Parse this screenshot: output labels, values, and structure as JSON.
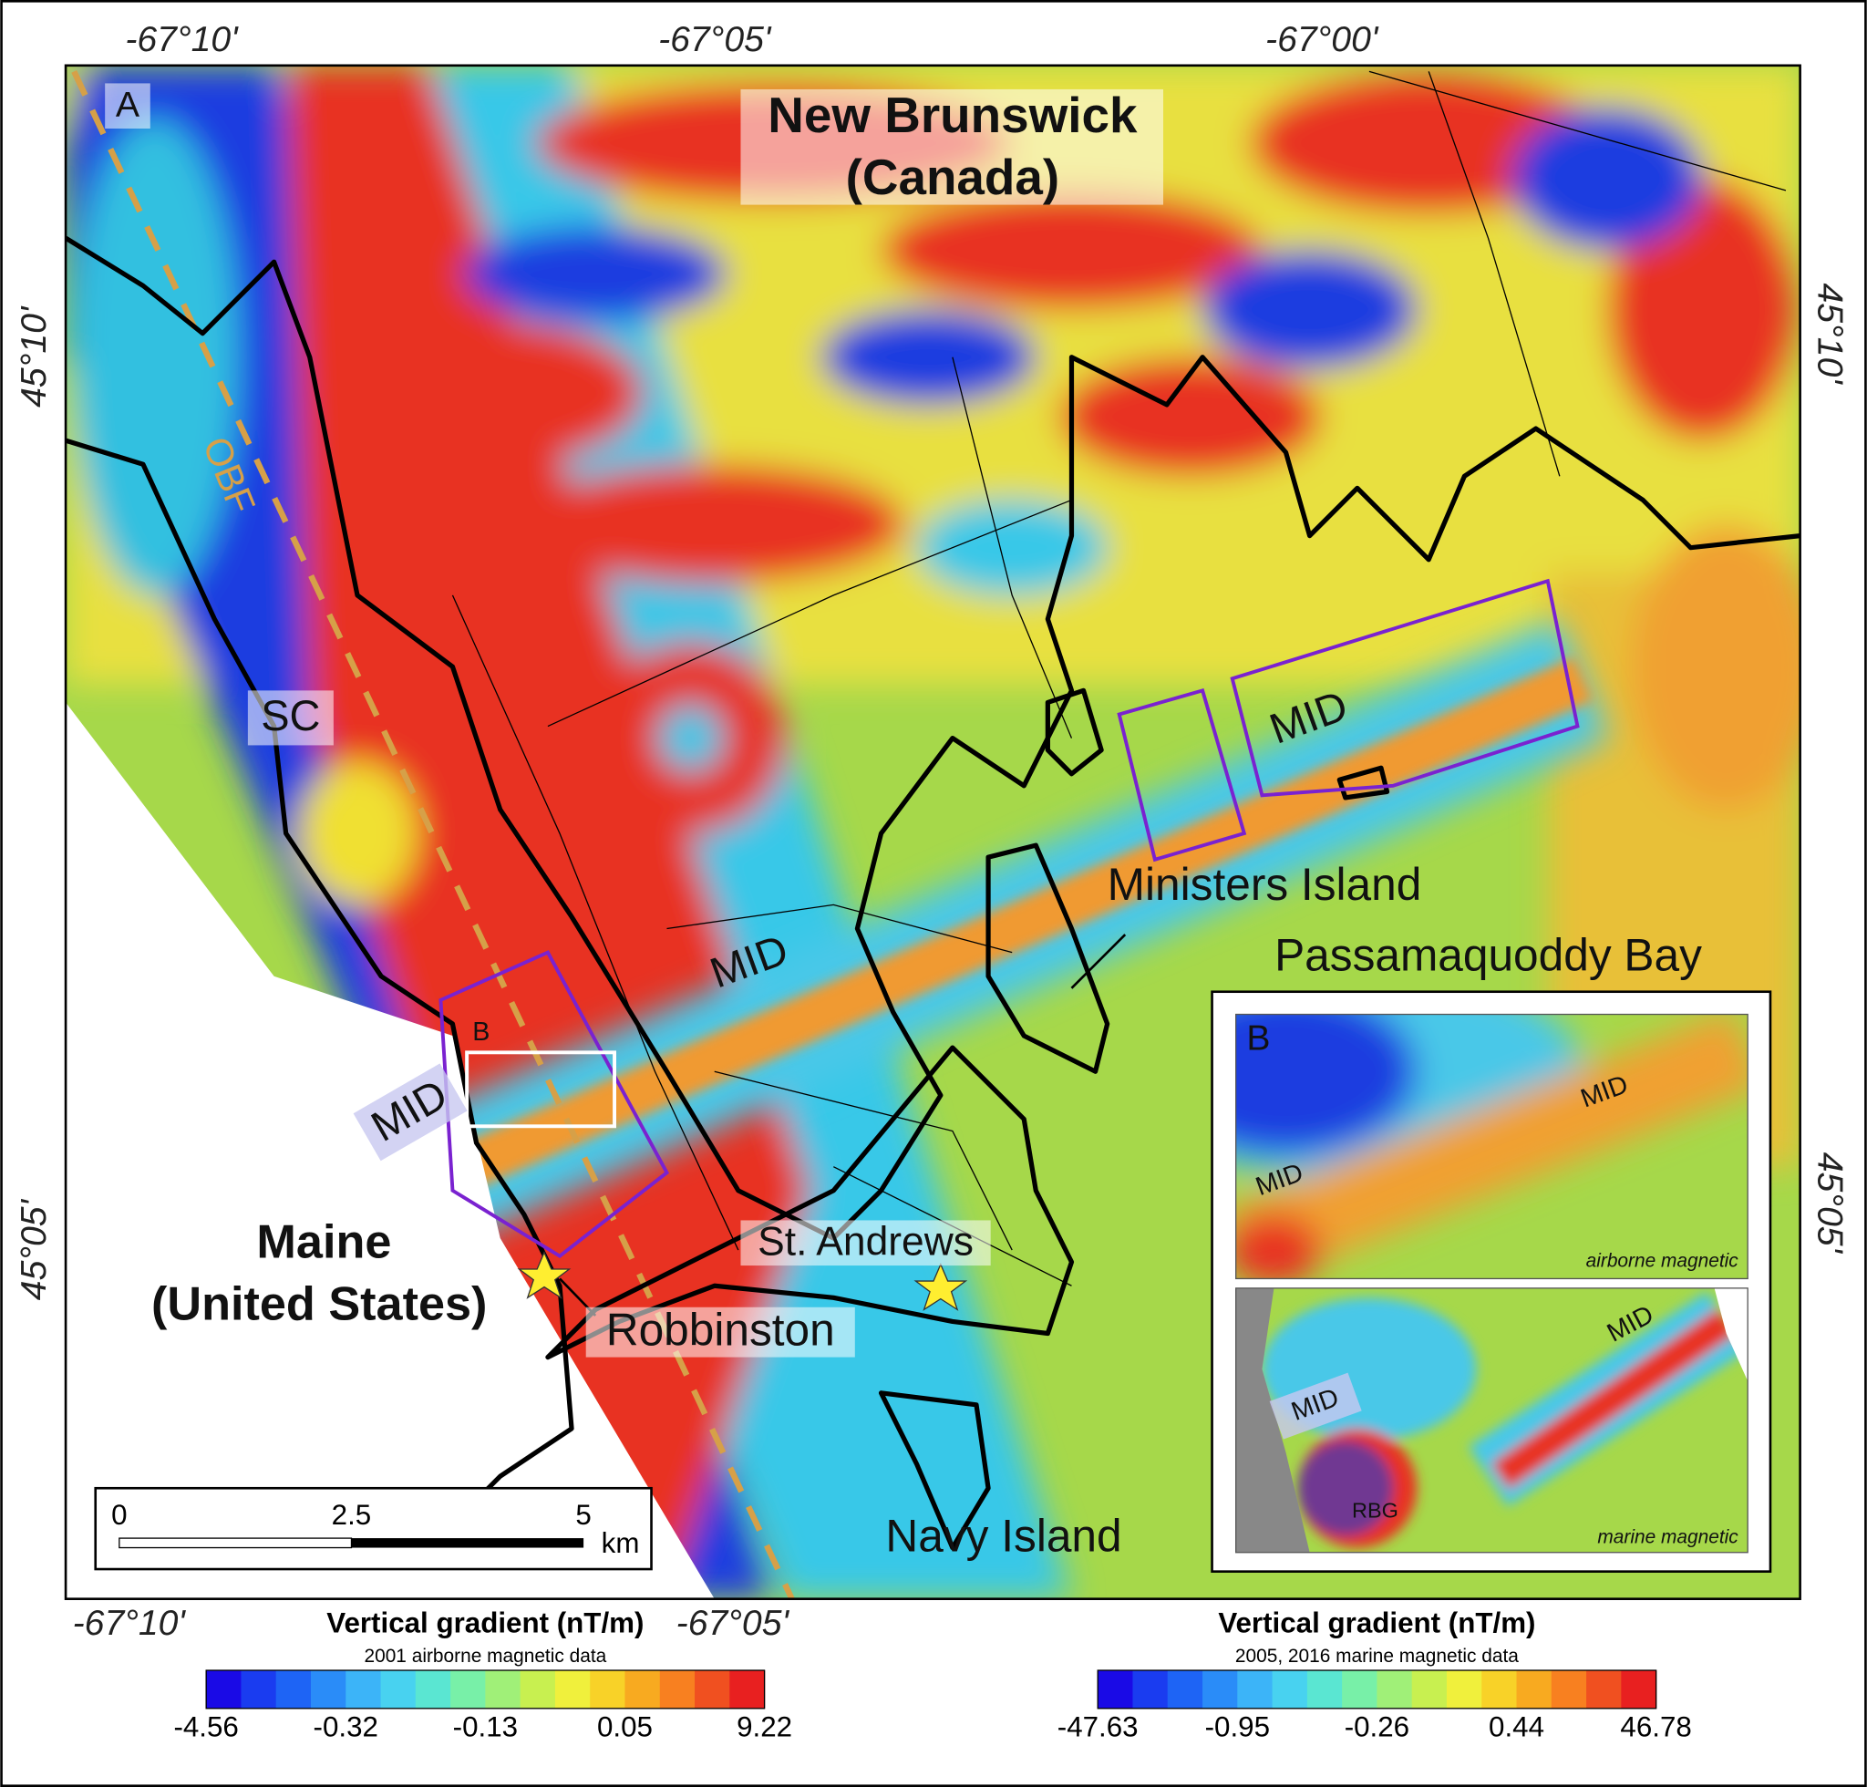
{
  "frame": {
    "top": [
      "-67°10'",
      "-67°05'",
      "-67°00'"
    ],
    "bottom": [
      "-67°10'",
      "-67°05'"
    ],
    "left": [
      "45°10'",
      "45°05'"
    ],
    "right": [
      "45°10'",
      "45°05'"
    ]
  },
  "map": {
    "panel": "A",
    "region": [
      "New Brunswick",
      "(Canada)"
    ],
    "fault": "OBF",
    "sc": "SC",
    "mid": [
      "MID",
      "MID",
      "MID"
    ],
    "box": "B",
    "ministers": "Ministers Island",
    "bay": "Passamaquoddy Bay",
    "maine": [
      "Maine",
      "(United States)"
    ],
    "robbinston": "Robbinston",
    "standrews": "St. Andrews",
    "navy": "Navy Island"
  },
  "inset": {
    "panel": "B",
    "top": {
      "labels": [
        "MID",
        "MID"
      ],
      "caption": "airborne magnetic"
    },
    "bottom": {
      "labels": [
        "MID",
        "MID",
        "RBG"
      ],
      "caption": "marine magnetic"
    }
  },
  "scale_bar": {
    "ticks": [
      "0",
      "2.5",
      "5"
    ],
    "unit": "km"
  },
  "colorbars": [
    {
      "title": "Vertical gradient (nT/m)",
      "subtitle": "2001 airborne magnetic data",
      "labels": [
        "-4.56",
        "-0.32",
        "-0.13",
        "0.05",
        "9.22"
      ]
    },
    {
      "title": "Vertical gradient (nT/m)",
      "subtitle": "2005, 2016 marine magnetic data",
      "labels": [
        "-47.63",
        "-0.95",
        "-0.26",
        "0.44",
        "46.78"
      ]
    }
  ]
}
